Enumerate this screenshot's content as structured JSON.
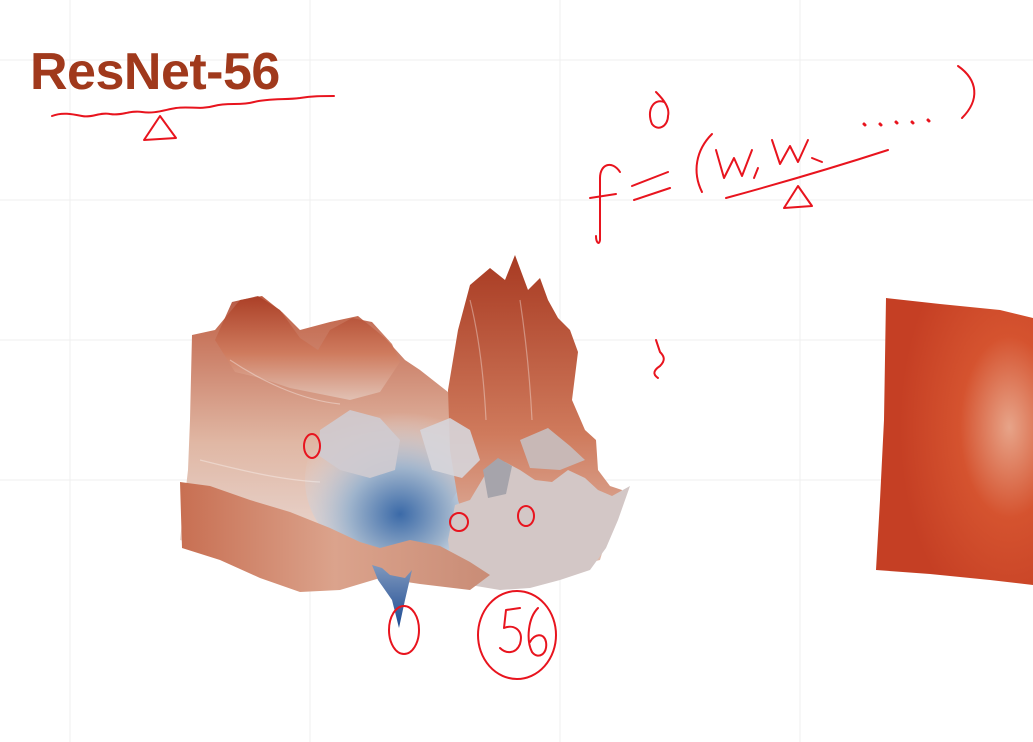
{
  "slide": {
    "title": "ResNet-56"
  },
  "visuals": {
    "title_color": "#a0391c",
    "ink_color": "#e8141e",
    "surface_peak_color": "#b2432a",
    "surface_mid_color": "#d9b7a8",
    "surface_valley_color": "#8fa8c4",
    "surface_minimum_color": "#1f4f96",
    "flat_surface_color": "#d0462a",
    "grid_color": "#eeeeee"
  }
}
